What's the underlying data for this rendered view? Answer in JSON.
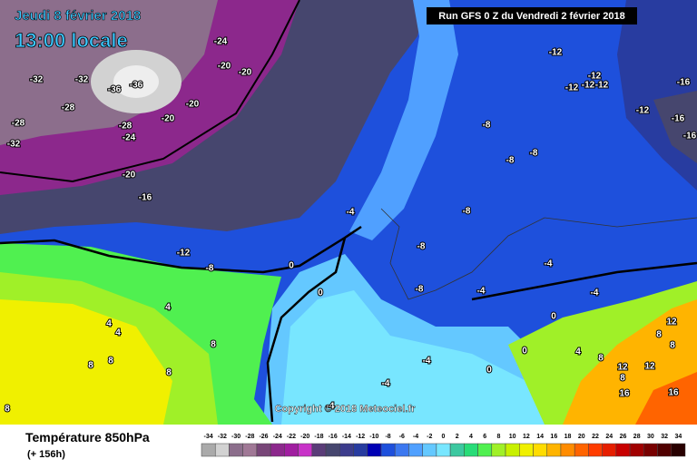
{
  "header": {
    "date": "Jeudi 8 février 2018",
    "time": "13:00 locale",
    "run": "Run GFS 0 Z du Vendredi 2 février 2018"
  },
  "copyright": "Copyright © 2018 Meteociel.fr",
  "legend": {
    "title": "Température 850hPa",
    "lead": "(+ 156h)",
    "scale": [
      -34,
      -32,
      -30,
      -28,
      -26,
      -24,
      -22,
      -20,
      -18,
      -16,
      -14,
      -12,
      -10,
      -8,
      -6,
      -4,
      -2,
      0,
      2,
      4,
      6,
      8,
      10,
      12,
      14,
      16,
      18,
      20,
      22,
      24,
      26,
      28,
      30,
      32,
      34
    ],
    "colors": [
      "#aaaaaa",
      "#d2d2d2",
      "#8c6e8c",
      "#a07896",
      "#784678",
      "#8c288c",
      "#a01ea0",
      "#c832c8",
      "#5a3c78",
      "#46466e",
      "#3c3c8c",
      "#283ca0",
      "#0000b4",
      "#1e50dc",
      "#3c78f0",
      "#50a0ff",
      "#64c8ff",
      "#78e6ff",
      "#3cc8a0",
      "#28dc78",
      "#50f050",
      "#a0f028",
      "#c8f000",
      "#f0f000",
      "#ffdc00",
      "#ffb400",
      "#ff8c00",
      "#ff6400",
      "#ff3c00",
      "#e61e00",
      "#c80000",
      "#a00000",
      "#780000",
      "#500000",
      "#280000"
    ]
  },
  "contour_labels": [
    -32,
    -32,
    -36,
    -36,
    -28,
    -28,
    -32,
    -28,
    -24,
    -20,
    -20,
    -24,
    -20,
    -20,
    -20,
    -16,
    -12,
    -8,
    0,
    0,
    -4,
    -12,
    -12,
    -12,
    -12,
    -12,
    -16,
    -12,
    -16,
    -16,
    -8,
    -8,
    -8,
    -8,
    -8,
    -8,
    -4,
    -4,
    -4,
    0,
    0,
    4,
    4,
    4,
    8,
    8,
    8,
    8,
    8,
    -4,
    -4,
    -4,
    0,
    4,
    8,
    8,
    12,
    8,
    8,
    12,
    12,
    16,
    16
  ]
}
